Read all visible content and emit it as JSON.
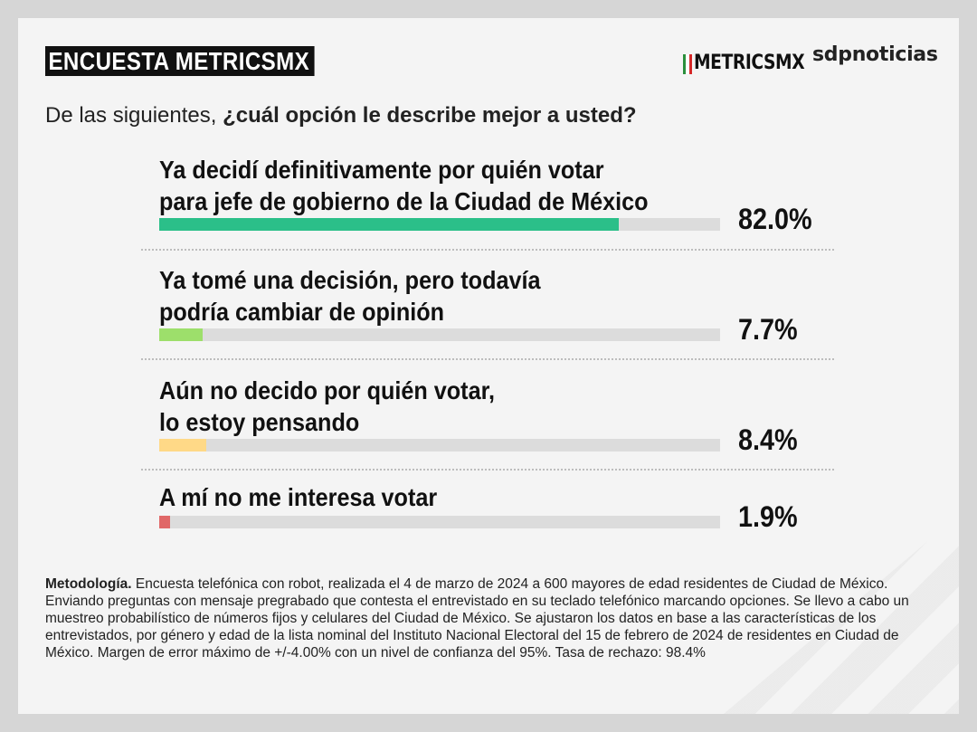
{
  "header": {
    "title": "ENCUESTA METRICSMX",
    "logo_metrics": "METRICSMX",
    "logo_sdp": "sdpnoticias"
  },
  "question": {
    "plain": "De las siguientes, ",
    "bold": "¿cuál opción le describe mejor a usted?"
  },
  "chart_data": {
    "type": "bar",
    "orientation": "horizontal",
    "xlim": [
      0,
      100
    ],
    "categories": [
      "Ya decidí definitivamente por quién votar\npara jefe de gobierno de la Ciudad de México",
      "Ya tomé una decisión, pero todavía\npodría cambiar de opinión",
      "Aún no decido por quién votar,\nlo estoy pensando",
      "A mí no me interesa votar"
    ],
    "values": [
      82.0,
      7.7,
      8.4,
      1.9
    ],
    "labels": [
      "82.0%",
      "7.7%",
      "8.4%",
      "1.9%"
    ],
    "colors": [
      "#2bbf89",
      "#9ddf6b",
      "#ffd987",
      "#e06868"
    ],
    "track_color": "#dcdcdc"
  },
  "methodology": {
    "heading": "Metodología.",
    "text": " Encuesta telefónica con robot, realizada el 4 de marzo de 2024 a 600 mayores de edad residentes de Ciudad de México. Enviando preguntas con mensaje pregrabado que contesta el entrevistado en su teclado telefónico marcando opciones. Se llevo a cabo un muestreo probabilístico de números fijos y celulares del Ciudad de México. Se ajustaron los datos en base a las características de los entrevistados, por género y edad de la lista nominal del Instituto Nacional Electoral del 15 de febrero de 2024 de residentes en Ciudad de México. Margen de error máximo de +/-4.00% con un nivel de confianza del 95%. Tasa de rechazo: 98.4%"
  }
}
